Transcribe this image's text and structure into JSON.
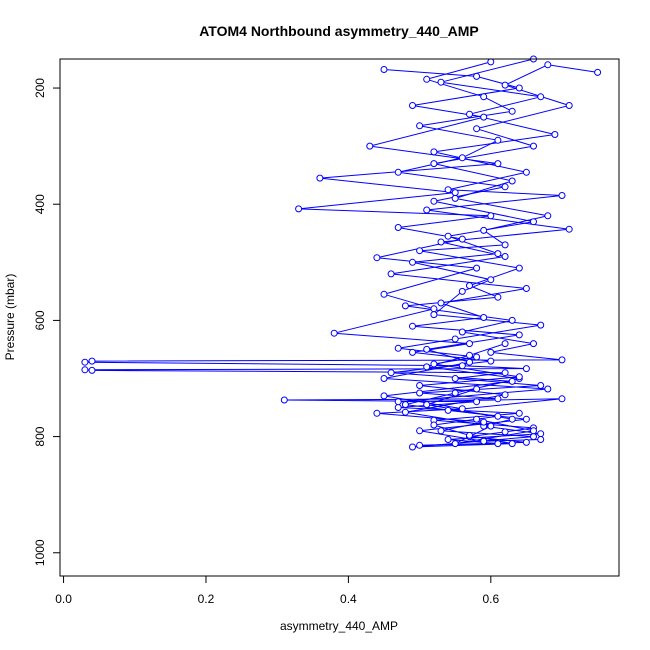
{
  "chart_data": {
    "type": "line",
    "title": "ATOM4 Northbound asymmetry_440_AMP",
    "xlabel": "asymmetry_440_AMP",
    "ylabel": "Pressure (mbar)",
    "xlim": [
      -0.005,
      0.78
    ],
    "ylim": [
      1040,
      150
    ],
    "y_reversed": true,
    "x_ticks": [
      0.0,
      0.2,
      0.4,
      0.6
    ],
    "x_tick_labels": [
      "0.0",
      "0.2",
      "0.4",
      "0.6"
    ],
    "y_ticks": [
      200,
      400,
      600,
      800,
      1000
    ],
    "y_tick_labels": [
      "200",
      "400",
      "600",
      "800",
      "1000"
    ],
    "grid": false,
    "series_style": {
      "color": "#0000ff",
      "marker": "open-circle",
      "line": true
    },
    "series": [
      {
        "values": [
          [
            0.75,
            173
          ],
          [
            0.68,
            160
          ],
          [
            0.62,
            195
          ],
          [
            0.71,
            230
          ],
          [
            0.58,
            270
          ],
          [
            0.66,
            300
          ],
          [
            0.52,
            330
          ],
          [
            0.63,
            360
          ],
          [
            0.55,
            390
          ],
          [
            0.68,
            420
          ],
          [
            0.59,
            445
          ],
          [
            0.62,
            470
          ],
          [
            0.5,
            480
          ],
          [
            0.64,
            510
          ],
          [
            0.57,
            540
          ],
          [
            0.61,
            560
          ],
          [
            0.48,
            575
          ],
          [
            0.63,
            600
          ],
          [
            0.56,
            620
          ],
          [
            0.66,
            640
          ],
          [
            0.6,
            655
          ],
          [
            0.7,
            668
          ],
          [
            0.04,
            670
          ],
          [
            0.03,
            672
          ],
          [
            0.56,
            678
          ],
          [
            0.65,
            683
          ],
          [
            0.03,
            685
          ],
          [
            0.04,
            686
          ],
          [
            0.62,
            690
          ],
          [
            0.55,
            700
          ],
          [
            0.67,
            712
          ],
          [
            0.5,
            725
          ],
          [
            0.61,
            735
          ],
          [
            0.31,
            737
          ],
          [
            0.58,
            740
          ],
          [
            0.47,
            750
          ],
          [
            0.64,
            760
          ],
          [
            0.52,
            772
          ],
          [
            0.66,
            785
          ],
          [
            0.62,
            792
          ],
          [
            0.57,
            800
          ],
          [
            0.65,
            810
          ],
          [
            0.5,
            815
          ],
          [
            0.61,
            812
          ],
          [
            0.54,
            805
          ],
          [
            0.67,
            795
          ],
          [
            0.59,
            782
          ],
          [
            0.63,
            770
          ],
          [
            0.51,
            745
          ],
          [
            0.58,
            718
          ]
        ]
      },
      {
        "values": [
          [
            0.45,
            168
          ],
          [
            0.58,
            180
          ],
          [
            0.64,
            200
          ],
          [
            0.49,
            230
          ],
          [
            0.59,
            250
          ],
          [
            0.43,
            300
          ],
          [
            0.61,
            330
          ],
          [
            0.36,
            355
          ],
          [
            0.55,
            380
          ],
          [
            0.33,
            408
          ],
          [
            0.6,
            420
          ],
          [
            0.47,
            440
          ],
          [
            0.56,
            460
          ],
          [
            0.44,
            492
          ],
          [
            0.58,
            510
          ],
          [
            0.45,
            555
          ],
          [
            0.52,
            580
          ],
          [
            0.38,
            622
          ],
          [
            0.57,
            640
          ],
          [
            0.49,
            655
          ],
          [
            0.6,
            670
          ],
          [
            0.46,
            690
          ],
          [
            0.63,
            705
          ],
          [
            0.45,
            730
          ],
          [
            0.56,
            752
          ],
          [
            0.44,
            760
          ],
          [
            0.59,
            775
          ],
          [
            0.53,
            790
          ],
          [
            0.66,
            800
          ],
          [
            0.49,
            818
          ],
          [
            0.63,
            812
          ],
          [
            0.57,
            798
          ],
          [
            0.52,
            780
          ],
          [
            0.61,
            765
          ],
          [
            0.48,
            745
          ],
          [
            0.55,
            725
          ],
          [
            0.64,
            700
          ],
          [
            0.51,
            680
          ],
          [
            0.57,
            660
          ],
          [
            0.62,
            640
          ]
        ]
      },
      {
        "values": [
          [
            0.66,
            150
          ],
          [
            0.53,
            190
          ],
          [
            0.67,
            215
          ],
          [
            0.57,
            245
          ],
          [
            0.69,
            280
          ],
          [
            0.52,
            310
          ],
          [
            0.65,
            345
          ],
          [
            0.54,
            375
          ],
          [
            0.7,
            385
          ],
          [
            0.51,
            410
          ],
          [
            0.71,
            443
          ],
          [
            0.53,
            465
          ],
          [
            0.62,
            490
          ],
          [
            0.46,
            520
          ],
          [
            0.65,
            545
          ],
          [
            0.53,
            570
          ],
          [
            0.59,
            595
          ],
          [
            0.49,
            610
          ],
          [
            0.64,
            625
          ],
          [
            0.51,
            650
          ],
          [
            0.57,
            672
          ],
          [
            0.45,
            700
          ],
          [
            0.68,
            718
          ],
          [
            0.47,
            740
          ],
          [
            0.7,
            735
          ],
          [
            0.54,
            755
          ],
          [
            0.65,
            770
          ],
          [
            0.5,
            790
          ],
          [
            0.59,
            808
          ],
          [
            0.67,
            805
          ]
        ]
      },
      {
        "values": [
          [
            0.6,
            155
          ],
          [
            0.51,
            185
          ],
          [
            0.59,
            215
          ],
          [
            0.63,
            240
          ],
          [
            0.5,
            265
          ],
          [
            0.61,
            290
          ],
          [
            0.56,
            320
          ],
          [
            0.47,
            345
          ],
          [
            0.62,
            370
          ],
          [
            0.52,
            395
          ],
          [
            0.66,
            430
          ],
          [
            0.54,
            455
          ],
          [
            0.61,
            485
          ],
          [
            0.49,
            500
          ],
          [
            0.6,
            530
          ],
          [
            0.56,
            550
          ],
          [
            0.52,
            590
          ],
          [
            0.67,
            608
          ],
          [
            0.55,
            632
          ],
          [
            0.47,
            648
          ],
          [
            0.58,
            663
          ],
          [
            0.52,
            675
          ],
          [
            0.64,
            697
          ],
          [
            0.5,
            712
          ],
          [
            0.62,
            728
          ],
          [
            0.48,
            758
          ],
          [
            0.6,
            782
          ],
          [
            0.55,
            812
          ],
          [
            0.66,
            790
          ],
          [
            0.58,
            770
          ]
        ]
      }
    ]
  }
}
